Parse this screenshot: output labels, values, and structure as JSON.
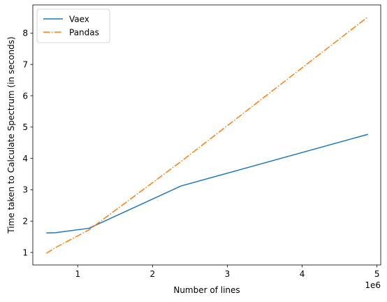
{
  "chart_data": {
    "type": "line",
    "title": "",
    "xlabel": "Number of lines",
    "ylabel": "Time taken to Calculate Spectrum (in seconds)",
    "x_offset_label": "1e6",
    "xlim": [
      0.4,
      5.05
    ],
    "ylim": [
      0.6,
      8.9
    ],
    "xticks": [
      1,
      2,
      3,
      4,
      5
    ],
    "yticks": [
      1,
      2,
      3,
      4,
      5,
      6,
      7,
      8
    ],
    "grid": false,
    "legend_position": "upper-left",
    "series": [
      {
        "name": "Vaex",
        "color": "#1f77b4",
        "linestyle": "solid",
        "x": [
          0.58,
          0.7,
          1.15,
          2.38,
          4.88
        ],
        "y": [
          1.62,
          1.63,
          1.77,
          3.12,
          4.77
        ]
      },
      {
        "name": "Pandas",
        "color": "#ff7f0e",
        "linestyle": "dashdot",
        "x": [
          0.58,
          0.7,
          1.15,
          2.38,
          4.88
        ],
        "y": [
          0.97,
          1.15,
          1.72,
          3.9,
          8.52
        ]
      }
    ]
  }
}
